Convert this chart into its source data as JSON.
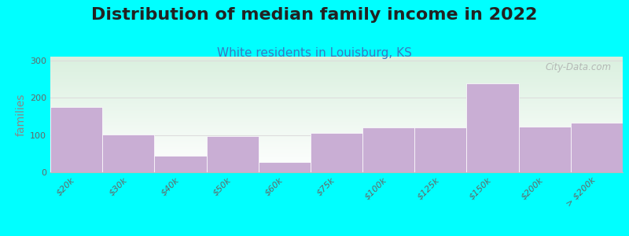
{
  "title": "Distribution of median family income in 2022",
  "subtitle": "White residents in Louisburg, KS",
  "ylabel": "families",
  "categories": [
    "$20k",
    "$30k",
    "$40k",
    "$50k",
    "$60k",
    "$75k",
    "$100k",
    "$125k",
    "$150k",
    "$200k",
    "> $200k"
  ],
  "values": [
    175,
    102,
    45,
    97,
    28,
    105,
    120,
    120,
    238,
    122,
    133
  ],
  "bar_color": "#c9aed4",
  "bar_edge_color": "#ffffff",
  "background_color": "#00ffff",
  "plot_bg_top_left": "#daf0df",
  "plot_bg_right": "#e8f0ee",
  "plot_bg_bottom": "#ffffff",
  "grid_color": "#dddddd",
  "yticks": [
    0,
    100,
    200,
    300
  ],
  "ylim": [
    0,
    310
  ],
  "title_fontsize": 16,
  "subtitle_fontsize": 11,
  "ylabel_fontsize": 10,
  "tick_label_fontsize": 8,
  "watermark_text": "City-Data.com"
}
